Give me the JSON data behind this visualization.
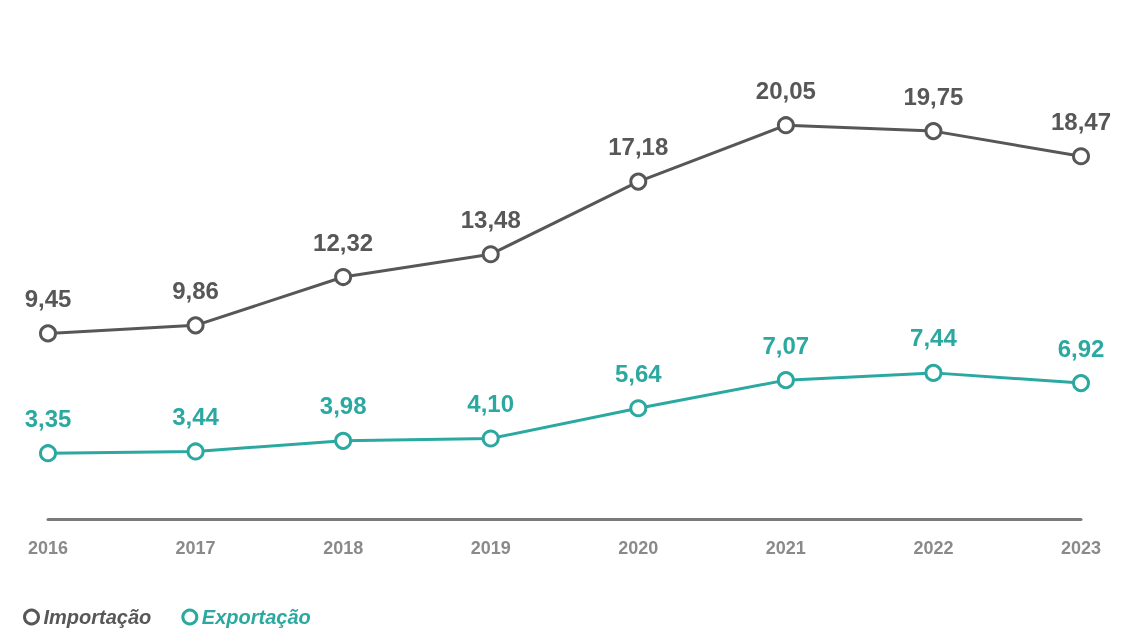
{
  "chart_data": {
    "type": "line",
    "categories": [
      "2016",
      "2017",
      "2018",
      "2019",
      "2020",
      "2021",
      "2022",
      "2023"
    ],
    "series": [
      {
        "name": "Importação",
        "color": "#575757",
        "values": [
          9.45,
          9.86,
          12.32,
          13.48,
          17.18,
          20.05,
          19.75,
          18.47
        ],
        "value_labels": [
          "9,45",
          "9,86",
          "12,32",
          "13,48",
          "17,18",
          "20,05",
          "19,75",
          "18,47"
        ]
      },
      {
        "name": "Exportação",
        "color": "#2ba9a1",
        "values": [
          3.35,
          3.44,
          3.98,
          4.1,
          5.64,
          7.07,
          7.44,
          6.92
        ],
        "value_labels": [
          "3,35",
          "3,44",
          "3,98",
          "4,10",
          "5,64",
          "7,07",
          "7,44",
          "6,92"
        ]
      }
    ],
    "grid": false,
    "legend": "bottom left",
    "marker": "circle",
    "line_style": "solid",
    "tick_labels": "x"
  }
}
